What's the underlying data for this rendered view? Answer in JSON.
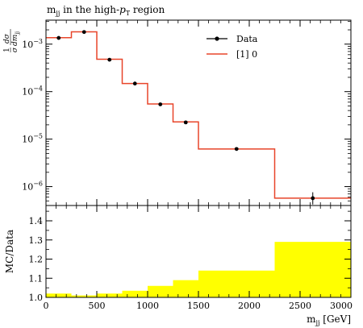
{
  "chart_data": [
    {
      "type": "line",
      "title": "m_jj in the high-p_T region",
      "title_parts": {
        "m": "m",
        "m_sub": "jj",
        "mid": " in the high-",
        "p": "p",
        "p_sub": "T",
        "end": " region"
      },
      "ylabel": {
        "num": "dσ",
        "den_d": "dm",
        "den_sub": "jj",
        "one": "1",
        "sigma": "σ"
      },
      "yscale": "log",
      "ylim": [
        4e-07,
        0.0032
      ],
      "xlim": [
        0,
        3000
      ],
      "yticks": [
        {
          "value": 0.001,
          "mant": "10",
          "exp": "−3"
        },
        {
          "value": 0.0001,
          "mant": "10",
          "exp": "−4"
        },
        {
          "value": 1e-05,
          "mant": "10",
          "exp": "−5"
        },
        {
          "value": 1e-06,
          "mant": "10",
          "exp": "−6"
        }
      ],
      "bin_edges": [
        0,
        250,
        500,
        750,
        1000,
        1250,
        1500,
        2250,
        3000
      ],
      "series": [
        {
          "name": "Data",
          "kind": "points",
          "color": "#000000",
          "x": [
            125,
            375,
            625,
            875,
            1125,
            1375,
            1875,
            2625
          ],
          "values": [
            0.00135,
            0.0018,
            0.00047,
            0.000148,
            5.4e-05,
            2.25e-05,
            6.2e-06,
            5.7e-07
          ],
          "err_up": [
            2e-05,
            2e-05,
            1e-05,
            3e-06,
            1e-06,
            6e-07,
            4e-07,
            1.9e-07
          ],
          "err_down": [
            2e-05,
            2e-05,
            1e-05,
            3e-06,
            1e-06,
            6e-07,
            4e-07,
            1.5e-07
          ]
        },
        {
          "name": "[1] 0",
          "kind": "step",
          "color": "#e8452a",
          "values": [
            0.00137,
            0.00182,
            0.00048,
            0.000148,
            5.5e-05,
            2.3e-05,
            6.2e-06,
            5.7e-07
          ]
        }
      ],
      "legend": {
        "placement": "top-right"
      }
    },
    {
      "type": "area",
      "ylabel": "MC/Data",
      "xlabel": {
        "m": "m",
        "sub": "jj",
        "unit": " [GeV]"
      },
      "xlim": [
        0,
        3000
      ],
      "ylim": [
        1.0,
        1.48
      ],
      "xticks": [
        "0",
        "500",
        "1000",
        "1500",
        "2000",
        "2500",
        "3000"
      ],
      "xtick_values": [
        0,
        500,
        1000,
        1500,
        2000,
        2500,
        3000
      ],
      "yticks": [
        "1.0",
        "1.1",
        "1.2",
        "1.3",
        "1.4"
      ],
      "ytick_values": [
        1.0,
        1.1,
        1.2,
        1.3,
        1.4
      ],
      "bin_edges": [
        0,
        250,
        500,
        750,
        1000,
        1250,
        1500,
        2250,
        3000
      ],
      "band_upper": [
        1.02,
        1.01,
        1.02,
        1.035,
        1.06,
        1.09,
        1.14,
        1.29
      ],
      "band_color": "#ffff00"
    }
  ]
}
